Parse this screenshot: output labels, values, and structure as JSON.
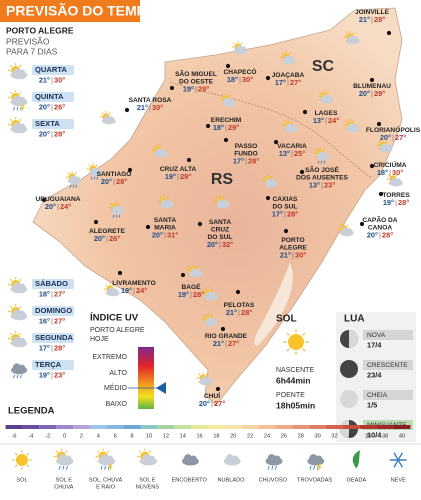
{
  "header": {
    "title": "PREVISÃO DO TEMPO",
    "city": "PORTO ALEGRE",
    "subtitle": [
      "PREVISÃO",
      "PARA 7 DIAS"
    ]
  },
  "forecast": [
    {
      "day": "QUARTA",
      "min": "21°",
      "max": "30°"
    },
    {
      "day": "QUINTA",
      "min": "20°",
      "max": "26°"
    },
    {
      "day": "SEXTA",
      "min": "20°",
      "max": "28°"
    },
    {
      "day": "SÁBADO",
      "min": "18°",
      "max": "27°"
    },
    {
      "day": "DOMINGO",
      "min": "16°",
      "max": "27°"
    },
    {
      "day": "SEGUNDA",
      "min": "17°",
      "max": "28°"
    },
    {
      "day": "TERÇA",
      "min": "19°",
      "max": "23°"
    }
  ],
  "map": {
    "regions": [
      "SC",
      "RS"
    ],
    "cities": [
      {
        "name": [
          "SÃO MIGUEL",
          "DO OESTE"
        ],
        "min": "19°",
        "max": "29°"
      },
      {
        "name": [
          "CHAPECÓ"
        ],
        "min": "18°",
        "max": "30°"
      },
      {
        "name": [
          "JOAÇABA"
        ],
        "min": "17°",
        "max": "27°"
      },
      {
        "name": [
          "JOINVILLE"
        ],
        "min": "21°",
        "max": "28°"
      },
      {
        "name": [
          "BLUMENAU"
        ],
        "min": "20°",
        "max": "29°"
      },
      {
        "name": [
          "LAGES"
        ],
        "min": "13°",
        "max": "24°"
      },
      {
        "name": [
          "FLORIANÓPOLIS"
        ],
        "min": "20°",
        "max": "27°"
      },
      {
        "name": [
          "SANTA ROSA"
        ],
        "min": "21°",
        "max": "30°"
      },
      {
        "name": [
          "ERECHIM"
        ],
        "min": "18°",
        "max": "29°"
      },
      {
        "name": [
          "PASSO",
          "FUNDO"
        ],
        "min": "17°",
        "max": "28°"
      },
      {
        "name": [
          "VACARIA"
        ],
        "min": "13°",
        "max": "25°"
      },
      {
        "name": [
          "CRUZ ALTA"
        ],
        "min": "19°",
        "max": "29°"
      },
      {
        "name": [
          "SÃO JOSÉ",
          "DOS AUSENTES"
        ],
        "min": "13°",
        "max": "23°"
      },
      {
        "name": [
          "CRICIÚMA"
        ],
        "min": "18°",
        "max": "30°"
      },
      {
        "name": [
          "SANTIAGO"
        ],
        "min": "20°",
        "max": "28°"
      },
      {
        "name": [
          "CAXIAS",
          "DO SUL"
        ],
        "min": "17°",
        "max": "28°"
      },
      {
        "name": [
          "TORRES"
        ],
        "min": "19°",
        "max": "28°"
      },
      {
        "name": [
          "URUGUAIANA"
        ],
        "min": "20°",
        "max": "24°"
      },
      {
        "name": [
          "ALEGRETE"
        ],
        "min": "20°",
        "max": "26°"
      },
      {
        "name": [
          "SANTA",
          "MARIA"
        ],
        "min": "20°",
        "max": "31°"
      },
      {
        "name": [
          "SANTA",
          "CRUZ",
          "DO SUL"
        ],
        "min": "20°",
        "max": "32°"
      },
      {
        "name": [
          "PORTO",
          "ALEGRE"
        ],
        "min": "21°",
        "max": "30°"
      },
      {
        "name": [
          "CAPÃO DA",
          "CANOA"
        ],
        "min": "20°",
        "max": "28°"
      },
      {
        "name": [
          "LIVRAMENTO"
        ],
        "min": "19°",
        "max": "24°"
      },
      {
        "name": [
          "BAGÉ"
        ],
        "min": "19°",
        "max": "28°"
      },
      {
        "name": [
          "PELOTAS"
        ],
        "min": "21°",
        "max": "28°"
      },
      {
        "name": [
          "RIO GRANDE"
        ],
        "min": "21°",
        "max": "27°"
      },
      {
        "name": [
          "CHUÍ"
        ],
        "min": "20°",
        "max": "27°"
      }
    ]
  },
  "uv": {
    "title": "ÍNDICE UV",
    "place": [
      "PORTO ALEGRE",
      "HOJE"
    ],
    "levels": [
      "EXTREMO",
      "ALTO",
      "MÉDIO",
      "BAIXO"
    ]
  },
  "sun": {
    "title": "SOL",
    "sunrise_label": "NASCENTE",
    "sunrise": "6h44min",
    "sunset_label": "POENTE",
    "sunset": "18h05min"
  },
  "moon": {
    "title": "LUA",
    "phases": [
      {
        "name": "NOVA",
        "date": "17/4"
      },
      {
        "name": "CRESCENTE",
        "date": "23/4"
      },
      {
        "name": "CHEIA",
        "date": "1/5"
      },
      {
        "name": "MINGUANTE",
        "date": "10/4"
      }
    ]
  },
  "legend": {
    "title": "LEGENDA",
    "scale": [
      -6,
      -4,
      -2,
      0,
      2,
      4,
      6,
      8,
      10,
      12,
      14,
      16,
      18,
      20,
      22,
      24,
      26,
      28,
      30,
      32,
      34,
      36,
      38,
      40
    ],
    "icons": [
      [
        "SOL"
      ],
      [
        "SOL E",
        "CHUVA"
      ],
      [
        "SOL, CHUVA",
        "E RAIO"
      ],
      [
        "SOL E",
        "NUVENS"
      ],
      [
        "ENCOBERTO"
      ],
      [
        "NUBLADO"
      ],
      [
        "CHUVOSO"
      ],
      [
        "TROVOADAS"
      ],
      [
        "GEADA"
      ],
      [
        "NEVE"
      ]
    ]
  }
}
